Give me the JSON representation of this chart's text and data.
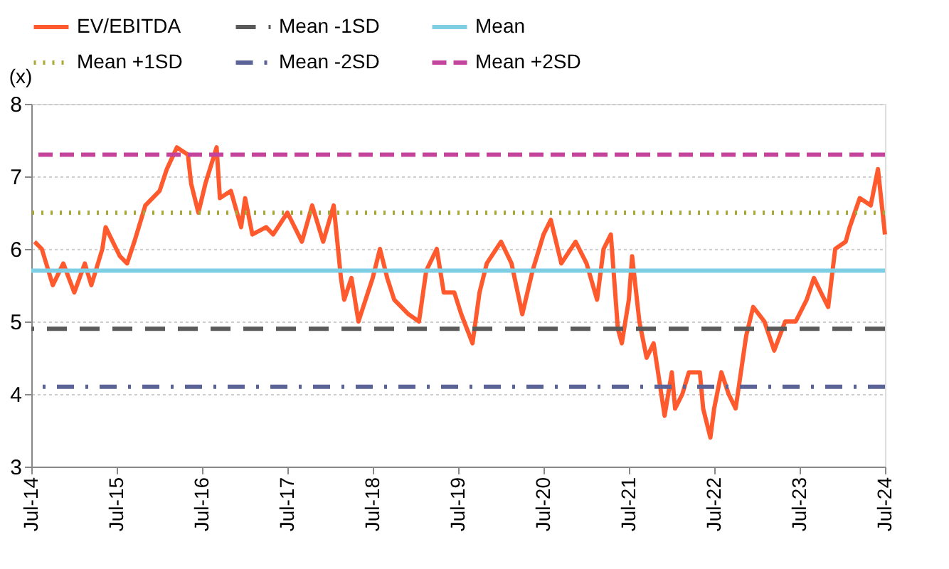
{
  "chart_data": {
    "type": "line",
    "ylabel": "(x)",
    "x": [
      "2014-07-15",
      "2014-08-15",
      "2014-10-01",
      "2014-11-15",
      "2015-01-01",
      "2015-02-15",
      "2015-03-15",
      "2015-05-01",
      "2015-05-15",
      "2015-07-15",
      "2015-08-15",
      "2015-09-15",
      "2015-11-01",
      "2016-01-01",
      "2016-02-01",
      "2016-03-15",
      "2016-05-01",
      "2016-05-15",
      "2016-06-15",
      "2016-07-15",
      "2016-09-01",
      "2016-09-15",
      "2016-11-01",
      "2016-12-15",
      "2017-01-01",
      "2017-02-01",
      "2017-04-01",
      "2017-05-01",
      "2017-07-01",
      "2017-09-01",
      "2017-10-15",
      "2017-12-01",
      "2018-01-15",
      "2018-02-15",
      "2018-03-01",
      "2018-04-01",
      "2018-05-01",
      "2018-07-01",
      "2018-08-01",
      "2018-09-01",
      "2018-10-01",
      "2018-12-01",
      "2019-01-15",
      "2019-02-15",
      "2019-04-01",
      "2019-05-01",
      "2019-06-15",
      "2019-07-15",
      "2019-09-01",
      "2019-10-01",
      "2019-11-01",
      "2020-01-01",
      "2020-02-15",
      "2020-04-01",
      "2020-05-15",
      "2020-07-01",
      "2020-08-01",
      "2020-09-15",
      "2020-11-15",
      "2021-01-01",
      "2021-02-15",
      "2021-03-15",
      "2021-04-15",
      "2021-05-15",
      "2021-06-01",
      "2021-07-01",
      "2021-07-15",
      "2021-08-15",
      "2021-09-15",
      "2021-10-15",
      "2021-12-01",
      "2022-01-01",
      "2022-01-15",
      "2022-02-15",
      "2022-03-15",
      "2022-05-01",
      "2022-05-15",
      "2022-06-15",
      "2022-07-01",
      "2022-08-01",
      "2022-09-01",
      "2022-10-01",
      "2022-11-15",
      "2022-12-15",
      "2023-02-01",
      "2023-03-15",
      "2023-05-01",
      "2023-06-15",
      "2023-08-01",
      "2023-09-01",
      "2023-10-01",
      "2023-11-01",
      "2023-12-01",
      "2024-01-15",
      "2024-02-01",
      "2024-03-15",
      "2024-05-01",
      "2024-06-01",
      "2024-07-01"
    ],
    "series": [
      {
        "name": "EV/EBITDA",
        "color": "#ff5a2e",
        "values": [
          6.1,
          6.0,
          5.5,
          5.8,
          5.4,
          5.8,
          5.5,
          6.0,
          6.3,
          5.9,
          5.8,
          6.1,
          6.6,
          6.8,
          7.1,
          7.4,
          7.3,
          6.9,
          6.5,
          6.9,
          7.4,
          6.7,
          6.8,
          6.3,
          6.7,
          6.2,
          6.3,
          6.2,
          6.5,
          6.1,
          6.6,
          6.1,
          6.6,
          5.6,
          5.3,
          5.6,
          5.0,
          5.6,
          6.0,
          5.6,
          5.3,
          5.1,
          5.0,
          5.7,
          6.0,
          5.4,
          5.4,
          5.1,
          4.7,
          5.4,
          5.8,
          6.1,
          5.8,
          5.1,
          5.7,
          6.2,
          6.4,
          5.8,
          6.1,
          5.8,
          5.3,
          6.0,
          6.2,
          4.9,
          4.7,
          5.3,
          5.9,
          5.0,
          4.5,
          4.7,
          3.7,
          4.3,
          3.8,
          4.0,
          4.3,
          4.3,
          3.8,
          3.4,
          3.8,
          4.3,
          4.0,
          3.8,
          4.8,
          5.2,
          5.0,
          4.6,
          5.0,
          5.0,
          5.3,
          5.6,
          5.4,
          5.2,
          6.0,
          6.1,
          6.3,
          6.7,
          6.6,
          7.1,
          6.2
        ]
      }
    ],
    "ref_lines": [
      {
        "axis": "y",
        "value": 4.9,
        "label": "Mean -1SD",
        "color": "#595959",
        "line_style": "dashed"
      },
      {
        "axis": "y",
        "value": 5.7,
        "label": "Mean",
        "color": "#7ecfe3",
        "line_style": "solid"
      },
      {
        "axis": "y",
        "value": 6.5,
        "label": "Mean +1SD",
        "color": "#a8a838",
        "line_style": "dotted"
      },
      {
        "axis": "y",
        "value": 4.1,
        "label": "Mean -2SD",
        "color": "#5b6397",
        "line_style": "dashdot"
      },
      {
        "axis": "y",
        "value": 7.3,
        "label": "Mean +2SD",
        "color": "#c4449b",
        "line_style": "dashed"
      }
    ],
    "xlim": [
      "2014-07-01",
      "2024-07-01"
    ],
    "xticks": [
      {
        "value": "2014-07-01",
        "label": "Jul-14"
      },
      {
        "value": "2015-07-01",
        "label": "Jul-15"
      },
      {
        "value": "2016-07-01",
        "label": "Jul-16"
      },
      {
        "value": "2017-07-01",
        "label": "Jul-17"
      },
      {
        "value": "2018-07-01",
        "label": "Jul-18"
      },
      {
        "value": "2019-07-01",
        "label": "Jul-19"
      },
      {
        "value": "2020-07-01",
        "label": "Jul-20"
      },
      {
        "value": "2021-07-01",
        "label": "Jul-21"
      },
      {
        "value": "2022-07-01",
        "label": "Jul-22"
      },
      {
        "value": "2023-07-01",
        "label": "Jul-23"
      },
      {
        "value": "2024-07-01",
        "label": "Jul-24"
      }
    ],
    "ylim": [
      3,
      8
    ],
    "yticks": [
      3,
      4,
      5,
      6,
      7,
      8
    ],
    "grid": "y",
    "legend": "top",
    "line_style": "solid",
    "marker": "none"
  }
}
